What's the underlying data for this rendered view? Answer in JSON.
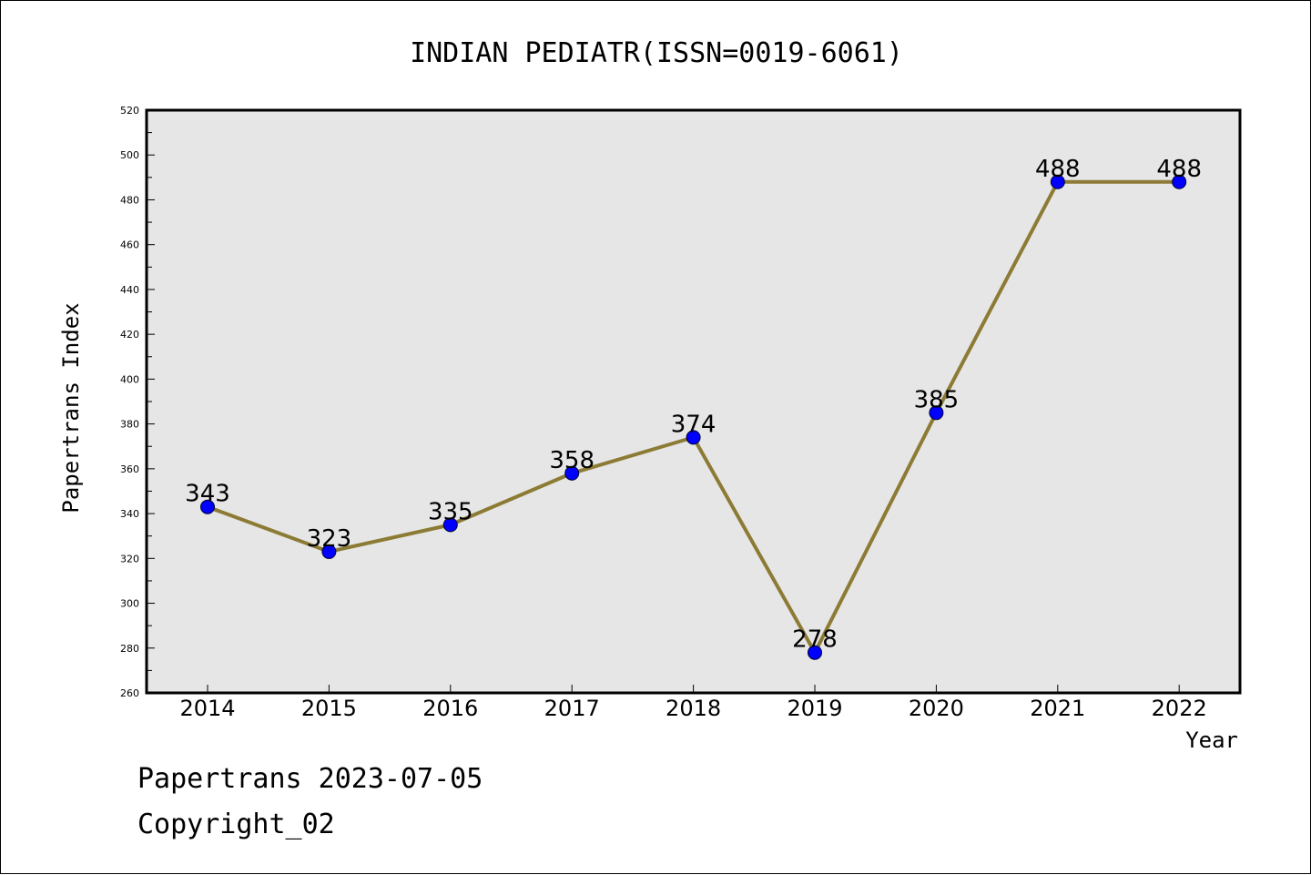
{
  "chart_data": {
    "type": "line",
    "title": "INDIAN PEDIATR(ISSN=0019-6061)",
    "xlabel": "Year",
    "ylabel": "Papertrans Index",
    "categories": [
      "2014",
      "2015",
      "2016",
      "2017",
      "2018",
      "2019",
      "2020",
      "2021",
      "2022"
    ],
    "values": [
      343,
      323,
      335,
      358,
      374,
      278,
      385,
      488,
      488
    ],
    "ylim": [
      260,
      520
    ],
    "yticks": [
      260,
      280,
      300,
      320,
      340,
      360,
      380,
      400,
      420,
      440,
      460,
      480,
      500,
      520
    ],
    "grid": false,
    "line_color": "#8c7b35",
    "marker_color": "#0000ff",
    "plot_background": "#e6e6e6"
  },
  "footer": {
    "source": "Papertrans 2023-07-05",
    "copyright": "Copyright_02"
  }
}
